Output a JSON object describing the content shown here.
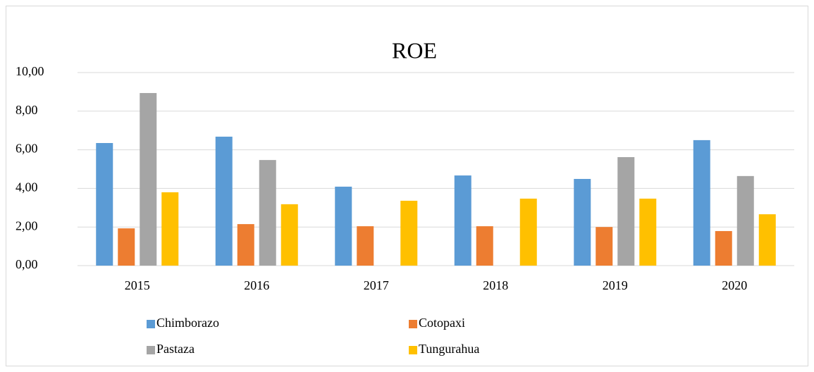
{
  "chart_data": {
    "type": "bar",
    "title": "ROE",
    "categories": [
      "2015",
      "2016",
      "2017",
      "2018",
      "2019",
      "2020"
    ],
    "series": [
      {
        "name": "Chimborazo",
        "color": "#5b9bd5",
        "values": [
          6.35,
          6.68,
          4.09,
          4.67,
          4.49,
          6.5
        ]
      },
      {
        "name": "Cotopaxi",
        "color": "#ed7d31",
        "values": [
          1.93,
          2.15,
          2.04,
          2.04,
          2.0,
          1.79
        ]
      },
      {
        "name": "Pastaza",
        "color": "#a5a5a5",
        "values": [
          8.94,
          5.47,
          null,
          null,
          5.62,
          4.64
        ]
      },
      {
        "name": "Tungurahua",
        "color": "#ffc000",
        "values": [
          3.8,
          3.18,
          3.36,
          3.47,
          3.47,
          2.66
        ]
      }
    ],
    "ylim": [
      0,
      10
    ],
    "yticks": [
      {
        "value": 0,
        "label": "0,00"
      },
      {
        "value": 2,
        "label": "2,00"
      },
      {
        "value": 4,
        "label": "4,00"
      },
      {
        "value": 6,
        "label": "6,00"
      },
      {
        "value": 8,
        "label": "8,00"
      },
      {
        "value": 10,
        "label": "10,00"
      }
    ],
    "grid": true
  }
}
